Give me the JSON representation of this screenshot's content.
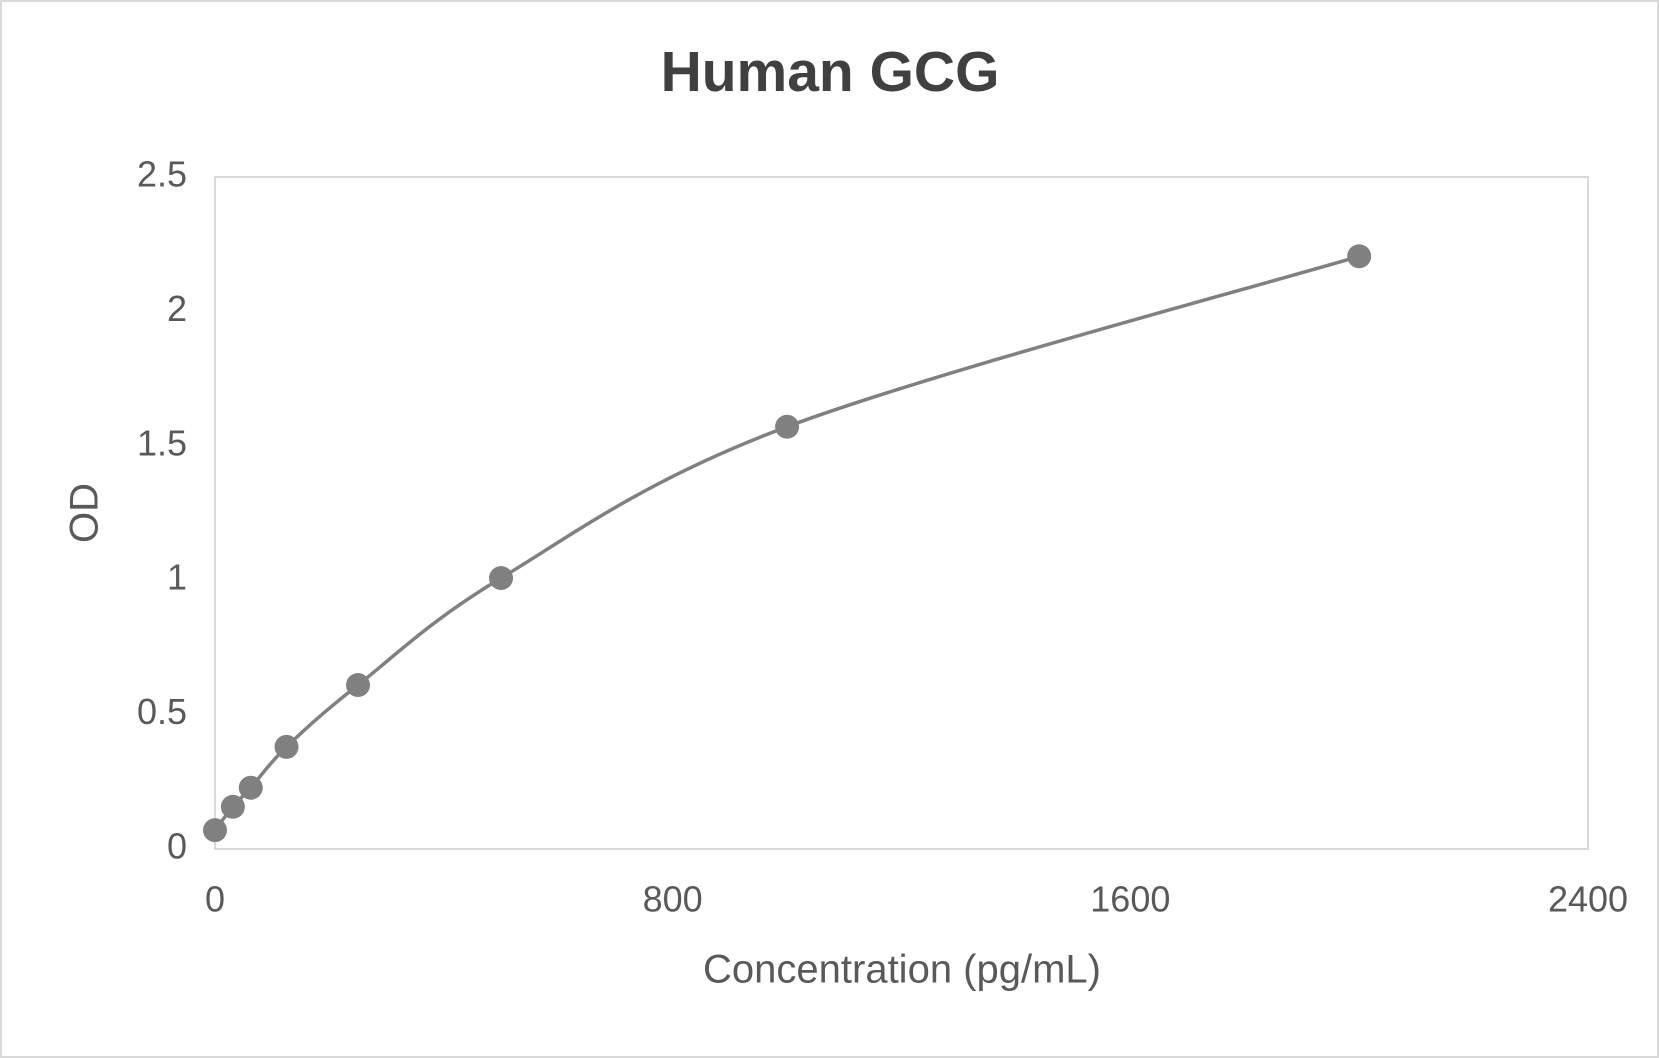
{
  "chart_data": {
    "type": "scatter",
    "title": "Human GCG",
    "x_label": "Concentration (pg/mL)",
    "y_label": "OD",
    "series": [
      {
        "name": "OD",
        "color": "#808080",
        "x": [
          0,
          31.25,
          62.5,
          125,
          250,
          500,
          1000,
          2000
        ],
        "values": [
          0.07,
          0.157,
          0.228,
          0.38,
          0.61,
          1.008,
          1.571,
          2.205
        ]
      }
    ],
    "smooth_line": true,
    "xlim": [
      0,
      2400
    ],
    "xticks": [
      0,
      800,
      1600,
      2400
    ],
    "ylim": [
      0,
      2.5
    ],
    "yticks": [
      0,
      0.5,
      1,
      1.5,
      2,
      2.5
    ],
    "grid": false
  }
}
